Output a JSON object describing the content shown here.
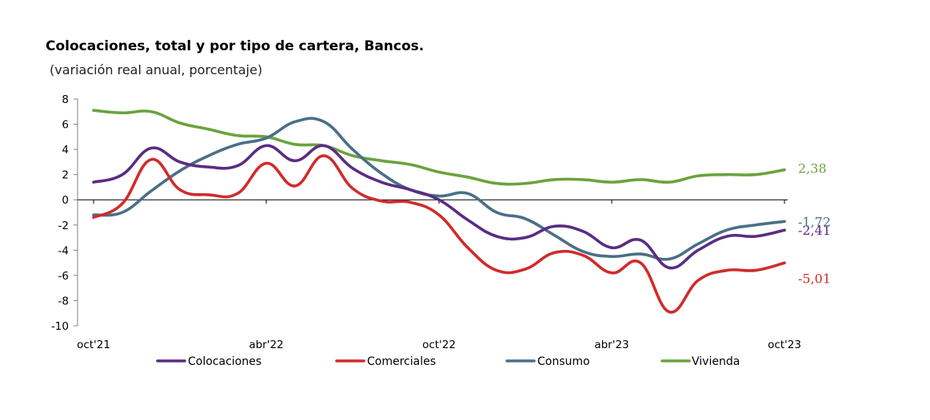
{
  "chart_data": {
    "type": "line",
    "title": "Colocaciones, total y por tipo de cartera, Bancos.",
    "subtitle": "(variación real anual, porcentaje)",
    "ylim": [
      -10,
      8
    ],
    "yticks": [
      "8",
      "6",
      "4",
      "2",
      "0",
      "-2",
      "-4",
      "-6",
      "-8",
      "-10"
    ],
    "xtick_labels": [
      "oct'21",
      "abr'22",
      "oct'22",
      "abr'23",
      "oct'23"
    ],
    "xtick_months": [
      0,
      6,
      12,
      18,
      24
    ],
    "x_months": [
      0,
      1,
      2,
      3,
      4,
      5,
      6,
      7,
      8,
      9,
      10,
      11,
      12,
      13,
      14,
      15,
      16,
      17,
      18,
      19,
      20,
      21,
      22,
      23,
      24
    ],
    "series": [
      {
        "name": "Colocaciones",
        "color": "#5b2c82",
        "end_label": "-2,41",
        "values": [
          1.4,
          2.0,
          4.1,
          3.0,
          2.6,
          2.7,
          4.3,
          3.1,
          4.3,
          2.5,
          1.4,
          0.8,
          0.0,
          -1.6,
          -2.9,
          -3.0,
          -2.1,
          -2.5,
          -3.8,
          -3.2,
          -5.4,
          -4.0,
          -2.9,
          -2.9,
          -2.41
        ]
      },
      {
        "name": "Comerciales",
        "color": "#d12b2b",
        "end_label": "-5,01",
        "values": [
          -1.4,
          -0.3,
          3.2,
          0.8,
          0.4,
          0.5,
          2.9,
          1.1,
          3.5,
          0.9,
          -0.1,
          -0.2,
          -1.2,
          -3.8,
          -5.6,
          -5.5,
          -4.2,
          -4.4,
          -5.8,
          -5.0,
          -8.9,
          -6.4,
          -5.6,
          -5.6,
          -5.01
        ]
      },
      {
        "name": "Consumo",
        "color": "#4a6f87",
        "end_label": "-1,72",
        "values": [
          -1.2,
          -1.0,
          0.7,
          2.3,
          3.5,
          4.4,
          4.9,
          6.2,
          6.2,
          4.0,
          2.1,
          0.8,
          0.3,
          0.5,
          -1.0,
          -1.5,
          -2.8,
          -4.1,
          -4.5,
          -4.3,
          -4.7,
          -3.5,
          -2.4,
          -2.0,
          -1.72
        ]
      },
      {
        "name": "Vivienda",
        "color": "#6aa33d",
        "end_label": "2,38",
        "values": [
          7.1,
          6.9,
          7.0,
          6.1,
          5.6,
          5.1,
          5.0,
          4.4,
          4.3,
          3.5,
          3.1,
          2.8,
          2.2,
          1.8,
          1.3,
          1.3,
          1.6,
          1.6,
          1.4,
          1.6,
          1.4,
          1.9,
          2.0,
          2.0,
          2.38
        ]
      }
    ],
    "legend_position": "bottom",
    "grid": false
  }
}
